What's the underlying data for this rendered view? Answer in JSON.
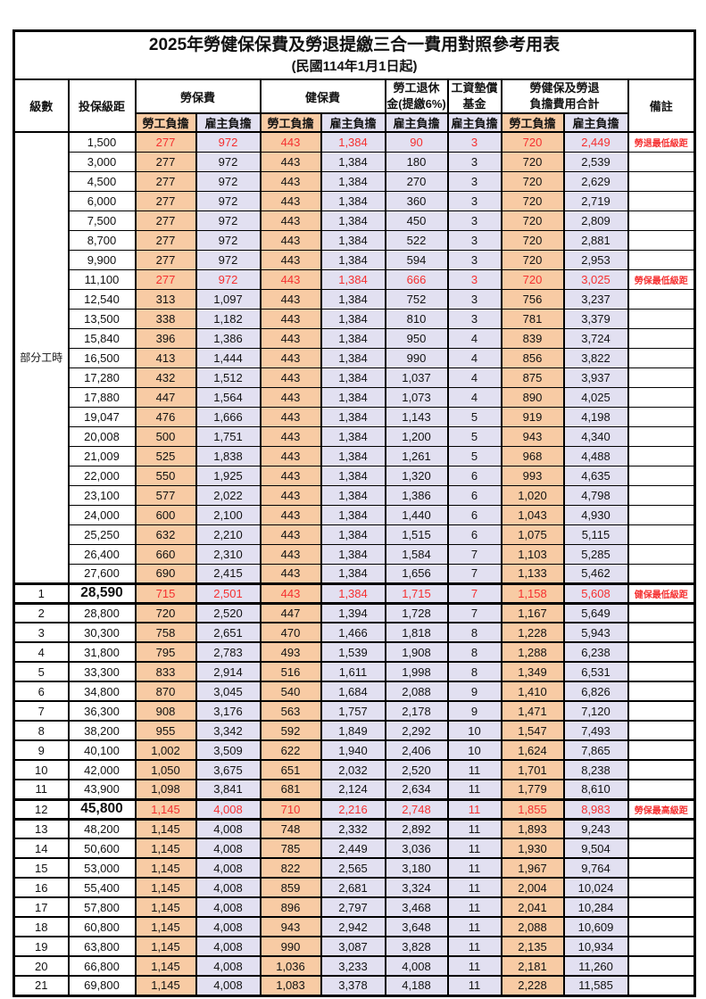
{
  "title": "2025年勞健保保費及勞退提繳三合一費用對照參考用表",
  "subtitle": "(民國114年1月1日起)",
  "colors": {
    "employee_column_bg": "#F8CBA4",
    "employer_column_bg": "#E2E0F1",
    "highlight_text": "#f53030",
    "border": "#000000"
  },
  "header": {
    "level": "級數",
    "bracket": "投保級距",
    "labor": "勞保費",
    "health": "健保費",
    "pension_line1": "勞工退休",
    "pension_line2": "金(提繳6%)",
    "wage_fund_line1": "工資墊償",
    "wage_fund_line2": "基金",
    "total_line1": "勞健保及勞退",
    "total_line2": "負擔費用合計",
    "note": "備註",
    "employee": "勞工負擔",
    "employer": "雇主負擔"
  },
  "part_time_label": "部分工時",
  "value_col_types": [
    "emp",
    "er",
    "emp",
    "er",
    "er",
    "er",
    "emp",
    "er"
  ],
  "rows": [
    {
      "section": "part",
      "level": "",
      "bracket": "1,500",
      "values": [
        "277",
        "972",
        "443",
        "1,384",
        "90",
        "3",
        "720",
        "2,449"
      ],
      "note": "勞退最低級距",
      "red": true
    },
    {
      "section": "part",
      "level": "",
      "bracket": "3,000",
      "values": [
        "277",
        "972",
        "443",
        "1,384",
        "180",
        "3",
        "720",
        "2,539"
      ],
      "note": ""
    },
    {
      "section": "part",
      "level": "",
      "bracket": "4,500",
      "values": [
        "277",
        "972",
        "443",
        "1,384",
        "270",
        "3",
        "720",
        "2,629"
      ],
      "note": ""
    },
    {
      "section": "part",
      "level": "",
      "bracket": "6,000",
      "values": [
        "277",
        "972",
        "443",
        "1,384",
        "360",
        "3",
        "720",
        "2,719"
      ],
      "note": ""
    },
    {
      "section": "part",
      "level": "",
      "bracket": "7,500",
      "values": [
        "277",
        "972",
        "443",
        "1,384",
        "450",
        "3",
        "720",
        "2,809"
      ],
      "note": ""
    },
    {
      "section": "part",
      "level": "",
      "bracket": "8,700",
      "values": [
        "277",
        "972",
        "443",
        "1,384",
        "522",
        "3",
        "720",
        "2,881"
      ],
      "note": ""
    },
    {
      "section": "part",
      "level": "",
      "bracket": "9,900",
      "values": [
        "277",
        "972",
        "443",
        "1,384",
        "594",
        "3",
        "720",
        "2,953"
      ],
      "note": ""
    },
    {
      "section": "part",
      "level": "",
      "bracket": "11,100",
      "values": [
        "277",
        "972",
        "443",
        "1,384",
        "666",
        "3",
        "720",
        "3,025"
      ],
      "note": "勞保最低級距",
      "red": true
    },
    {
      "section": "part",
      "level": "",
      "bracket": "12,540",
      "values": [
        "313",
        "1,097",
        "443",
        "1,384",
        "752",
        "3",
        "756",
        "3,237"
      ],
      "note": ""
    },
    {
      "section": "part",
      "level": "",
      "bracket": "13,500",
      "values": [
        "338",
        "1,182",
        "443",
        "1,384",
        "810",
        "3",
        "781",
        "3,379"
      ],
      "note": ""
    },
    {
      "section": "part",
      "level": "",
      "bracket": "15,840",
      "values": [
        "396",
        "1,386",
        "443",
        "1,384",
        "950",
        "4",
        "839",
        "3,724"
      ],
      "note": ""
    },
    {
      "section": "part",
      "level": "",
      "bracket": "16,500",
      "values": [
        "413",
        "1,444",
        "443",
        "1,384",
        "990",
        "4",
        "856",
        "3,822"
      ],
      "note": ""
    },
    {
      "section": "part",
      "level": "",
      "bracket": "17,280",
      "values": [
        "432",
        "1,512",
        "443",
        "1,384",
        "1,037",
        "4",
        "875",
        "3,937"
      ],
      "note": ""
    },
    {
      "section": "part",
      "level": "",
      "bracket": "17,880",
      "values": [
        "447",
        "1,564",
        "443",
        "1,384",
        "1,073",
        "4",
        "890",
        "4,025"
      ],
      "note": ""
    },
    {
      "section": "part",
      "level": "",
      "bracket": "19,047",
      "values": [
        "476",
        "1,666",
        "443",
        "1,384",
        "1,143",
        "5",
        "919",
        "4,198"
      ],
      "note": ""
    },
    {
      "section": "part",
      "level": "",
      "bracket": "20,008",
      "values": [
        "500",
        "1,751",
        "443",
        "1,384",
        "1,200",
        "5",
        "943",
        "4,340"
      ],
      "note": ""
    },
    {
      "section": "part",
      "level": "",
      "bracket": "21,009",
      "values": [
        "525",
        "1,838",
        "443",
        "1,384",
        "1,261",
        "5",
        "968",
        "4,488"
      ],
      "note": ""
    },
    {
      "section": "part",
      "level": "",
      "bracket": "22,000",
      "values": [
        "550",
        "1,925",
        "443",
        "1,384",
        "1,320",
        "6",
        "993",
        "4,635"
      ],
      "note": ""
    },
    {
      "section": "part",
      "level": "",
      "bracket": "23,100",
      "values": [
        "577",
        "2,022",
        "443",
        "1,384",
        "1,386",
        "6",
        "1,020",
        "4,798"
      ],
      "note": ""
    },
    {
      "section": "part",
      "level": "",
      "bracket": "24,000",
      "values": [
        "600",
        "2,100",
        "443",
        "1,384",
        "1,440",
        "6",
        "1,043",
        "4,930"
      ],
      "note": ""
    },
    {
      "section": "part",
      "level": "",
      "bracket": "25,250",
      "values": [
        "632",
        "2,210",
        "443",
        "1,384",
        "1,515",
        "6",
        "1,075",
        "5,115"
      ],
      "note": ""
    },
    {
      "section": "part",
      "level": "",
      "bracket": "26,400",
      "values": [
        "660",
        "2,310",
        "443",
        "1,384",
        "1,584",
        "7",
        "1,103",
        "5,285"
      ],
      "note": ""
    },
    {
      "section": "part",
      "level": "",
      "bracket": "27,600",
      "values": [
        "690",
        "2,415",
        "443",
        "1,384",
        "1,656",
        "7",
        "1,133",
        "5,462"
      ],
      "note": ""
    },
    {
      "section": "level",
      "level": "1",
      "bracket": "28,590",
      "values": [
        "715",
        "2,501",
        "443",
        "1,384",
        "1,715",
        "7",
        "1,158",
        "5,608"
      ],
      "note": "健保最低級距",
      "red": true,
      "emph": true
    },
    {
      "section": "level",
      "level": "2",
      "bracket": "28,800",
      "values": [
        "720",
        "2,520",
        "447",
        "1,394",
        "1,728",
        "7",
        "1,167",
        "5,649"
      ],
      "note": ""
    },
    {
      "section": "level",
      "level": "3",
      "bracket": "30,300",
      "values": [
        "758",
        "2,651",
        "470",
        "1,466",
        "1,818",
        "8",
        "1,228",
        "5,943"
      ],
      "note": ""
    },
    {
      "section": "level",
      "level": "4",
      "bracket": "31,800",
      "values": [
        "795",
        "2,783",
        "493",
        "1,539",
        "1,908",
        "8",
        "1,288",
        "6,238"
      ],
      "note": ""
    },
    {
      "section": "level",
      "level": "5",
      "bracket": "33,300",
      "values": [
        "833",
        "2,914",
        "516",
        "1,611",
        "1,998",
        "8",
        "1,349",
        "6,531"
      ],
      "note": ""
    },
    {
      "section": "level",
      "level": "6",
      "bracket": "34,800",
      "values": [
        "870",
        "3,045",
        "540",
        "1,684",
        "2,088",
        "9",
        "1,410",
        "6,826"
      ],
      "note": ""
    },
    {
      "section": "level",
      "level": "7",
      "bracket": "36,300",
      "values": [
        "908",
        "3,176",
        "563",
        "1,757",
        "2,178",
        "9",
        "1,471",
        "7,120"
      ],
      "note": ""
    },
    {
      "section": "level",
      "level": "8",
      "bracket": "38,200",
      "values": [
        "955",
        "3,342",
        "592",
        "1,849",
        "2,292",
        "10",
        "1,547",
        "7,493"
      ],
      "note": ""
    },
    {
      "section": "level",
      "level": "9",
      "bracket": "40,100",
      "values": [
        "1,002",
        "3,509",
        "622",
        "1,940",
        "2,406",
        "10",
        "1,624",
        "7,865"
      ],
      "note": ""
    },
    {
      "section": "level",
      "level": "10",
      "bracket": "42,000",
      "values": [
        "1,050",
        "3,675",
        "651",
        "2,032",
        "2,520",
        "11",
        "1,701",
        "8,238"
      ],
      "note": ""
    },
    {
      "section": "level",
      "level": "11",
      "bracket": "43,900",
      "values": [
        "1,098",
        "3,841",
        "681",
        "2,124",
        "2,634",
        "11",
        "1,779",
        "8,610"
      ],
      "note": ""
    },
    {
      "section": "level",
      "level": "12",
      "bracket": "45,800",
      "values": [
        "1,145",
        "4,008",
        "710",
        "2,216",
        "2,748",
        "11",
        "1,855",
        "8,983"
      ],
      "note": "勞保最高級距",
      "red": true,
      "emph": true
    },
    {
      "section": "level",
      "level": "13",
      "bracket": "48,200",
      "values": [
        "1,145",
        "4,008",
        "748",
        "2,332",
        "2,892",
        "11",
        "1,893",
        "9,243"
      ],
      "note": ""
    },
    {
      "section": "level",
      "level": "14",
      "bracket": "50,600",
      "values": [
        "1,145",
        "4,008",
        "785",
        "2,449",
        "3,036",
        "11",
        "1,930",
        "9,504"
      ],
      "note": ""
    },
    {
      "section": "level",
      "level": "15",
      "bracket": "53,000",
      "values": [
        "1,145",
        "4,008",
        "822",
        "2,565",
        "3,180",
        "11",
        "1,967",
        "9,764"
      ],
      "note": ""
    },
    {
      "section": "level",
      "level": "16",
      "bracket": "55,400",
      "values": [
        "1,145",
        "4,008",
        "859",
        "2,681",
        "3,324",
        "11",
        "2,004",
        "10,024"
      ],
      "note": ""
    },
    {
      "section": "level",
      "level": "17",
      "bracket": "57,800",
      "values": [
        "1,145",
        "4,008",
        "896",
        "2,797",
        "3,468",
        "11",
        "2,041",
        "10,284"
      ],
      "note": ""
    },
    {
      "section": "level",
      "level": "18",
      "bracket": "60,800",
      "values": [
        "1,145",
        "4,008",
        "943",
        "2,942",
        "3,648",
        "11",
        "2,088",
        "10,609"
      ],
      "note": ""
    },
    {
      "section": "level",
      "level": "19",
      "bracket": "63,800",
      "values": [
        "1,145",
        "4,008",
        "990",
        "3,087",
        "3,828",
        "11",
        "2,135",
        "10,934"
      ],
      "note": ""
    },
    {
      "section": "level",
      "level": "20",
      "bracket": "66,800",
      "values": [
        "1,145",
        "4,008",
        "1,036",
        "3,233",
        "4,008",
        "11",
        "2,181",
        "11,260"
      ],
      "note": ""
    },
    {
      "section": "level",
      "level": "21",
      "bracket": "69,800",
      "values": [
        "1,145",
        "4,008",
        "1,083",
        "3,378",
        "4,188",
        "11",
        "2,228",
        "11,585"
      ],
      "note": ""
    }
  ]
}
